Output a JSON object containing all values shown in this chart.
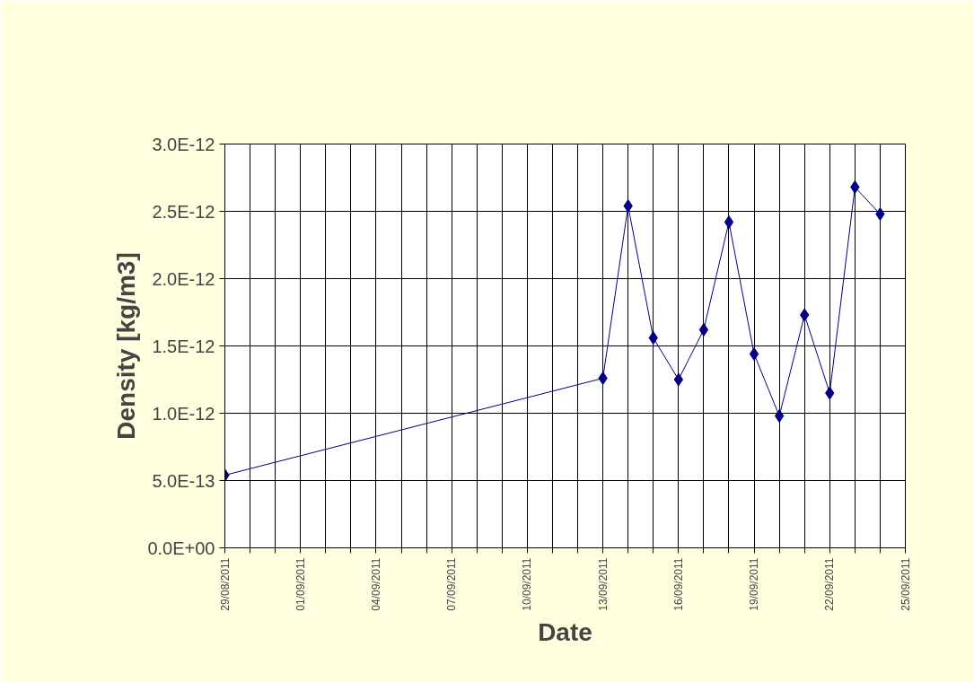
{
  "chart_data": {
    "type": "line",
    "xlabel": "Date",
    "ylabel": "Density [kg/m3]",
    "x": [
      "2011-08-29",
      "2011-09-13",
      "2011-09-14",
      "2011-09-15",
      "2011-09-16",
      "2011-09-17",
      "2011-09-18",
      "2011-09-19",
      "2011-09-20",
      "2011-09-21",
      "2011-09-22",
      "2011-09-23",
      "2011-09-24"
    ],
    "series": [
      {
        "color": "#000080",
        "values": [
          5.4e-13,
          1.26e-12,
          2.54e-12,
          1.56e-12,
          1.25e-12,
          1.62e-12,
          2.42e-12,
          1.44e-12,
          9.8e-13,
          1.73e-12,
          1.15e-12,
          2.68e-12,
          2.48e-12
        ]
      }
    ],
    "xlim": [
      "2011-08-29",
      "2011-09-25"
    ],
    "xticks": [
      {
        "value": "2011-08-29",
        "label": "29/08/2011"
      },
      {
        "value": "2011-08-30",
        "label": null
      },
      {
        "value": "2011-08-31",
        "label": null
      },
      {
        "value": "2011-09-01",
        "label": "01/09/2011"
      },
      {
        "value": "2011-09-02",
        "label": null
      },
      {
        "value": "2011-09-03",
        "label": null
      },
      {
        "value": "2011-09-04",
        "label": "04/09/2011"
      },
      {
        "value": "2011-09-05",
        "label": null
      },
      {
        "value": "2011-09-06",
        "label": null
      },
      {
        "value": "2011-09-07",
        "label": "07/09/2011"
      },
      {
        "value": "2011-09-08",
        "label": null
      },
      {
        "value": "2011-09-09",
        "label": null
      },
      {
        "value": "2011-09-10",
        "label": "10/09/2011"
      },
      {
        "value": "2011-09-11",
        "label": null
      },
      {
        "value": "2011-09-12",
        "label": null
      },
      {
        "value": "2011-09-13",
        "label": "13/09/2011"
      },
      {
        "value": "2011-09-14",
        "label": null
      },
      {
        "value": "2011-09-15",
        "label": null
      },
      {
        "value": "2011-09-16",
        "label": "16/09/2011"
      },
      {
        "value": "2011-09-17",
        "label": null
      },
      {
        "value": "2011-09-18",
        "label": null
      },
      {
        "value": "2011-09-19",
        "label": "19/09/2011"
      },
      {
        "value": "2011-09-20",
        "label": null
      },
      {
        "value": "2011-09-21",
        "label": null
      },
      {
        "value": "2011-09-22",
        "label": "22/09/2011"
      },
      {
        "value": "2011-09-23",
        "label": null
      },
      {
        "value": "2011-09-24",
        "label": null
      },
      {
        "value": "2011-09-25",
        "label": "25/09/2011"
      }
    ],
    "ylim": [
      0,
      3e-12
    ],
    "yticks": [
      {
        "value": 0,
        "label": "0.0E+00"
      },
      {
        "value": 5e-13,
        "label": "5.0E-13"
      },
      {
        "value": 1e-12,
        "label": "1.0E-12"
      },
      {
        "value": 1.5e-12,
        "label": "1.5E-12"
      },
      {
        "value": 2e-12,
        "label": "2.0E-12"
      },
      {
        "value": 2.5e-12,
        "label": "2.5E-12"
      },
      {
        "value": 3e-12,
        "label": "3.0E-12"
      }
    ],
    "grid": true,
    "marker": "diamond",
    "line_style": "solid"
  }
}
